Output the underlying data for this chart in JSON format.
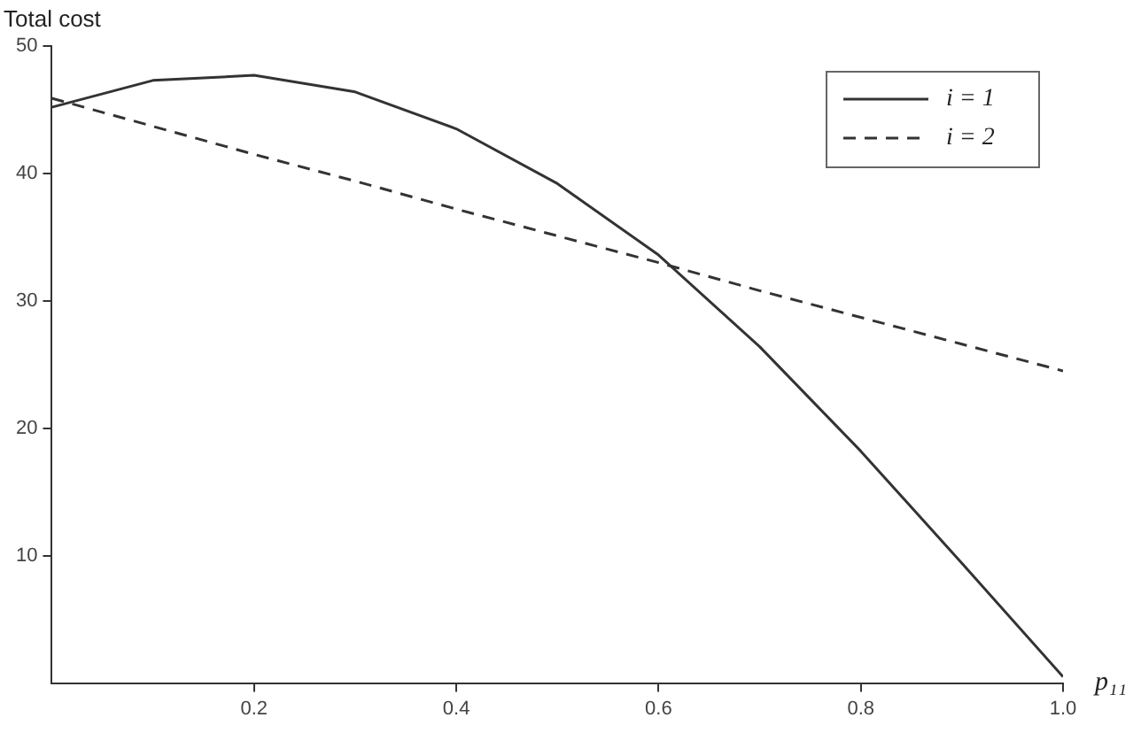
{
  "chart_data": {
    "type": "line",
    "xlabel": "p₁₁",
    "ylabel": "Total cost",
    "x": [
      0,
      0.1,
      0.2,
      0.3,
      0.4,
      0.5,
      0.6,
      0.7,
      0.8,
      0.9,
      1.0
    ],
    "series": [
      {
        "name": "i = 1",
        "color": "#333333",
        "line_style": "solid",
        "values": [
          45.2,
          47.3,
          47.7,
          46.4,
          43.5,
          39.2,
          33.6,
          26.4,
          18.2,
          9.4,
          0.5
        ]
      },
      {
        "name": "i = 2",
        "color": "#333333",
        "line_style": "dashed",
        "values": [
          45.9,
          43.7,
          41.5,
          39.4,
          37.2,
          35.1,
          33.0,
          30.8,
          28.7,
          26.6,
          24.5
        ]
      }
    ],
    "xlim": [
      0,
      1.0
    ],
    "ylim": [
      0,
      50
    ],
    "xticks": [
      0.2,
      0.4,
      0.6,
      0.8,
      {
        "value": 1.0,
        "label": "1.0"
      }
    ],
    "yticks": [
      10,
      20,
      30,
      40,
      50
    ],
    "grid": false,
    "legend": "top right",
    "marker": "none"
  }
}
